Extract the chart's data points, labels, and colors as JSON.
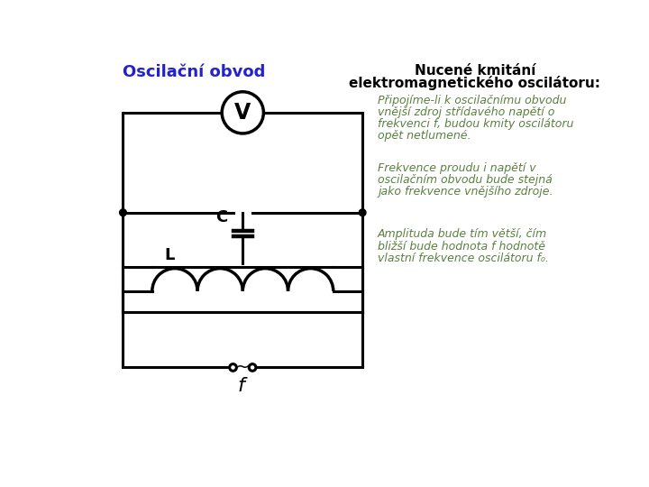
{
  "title_left": "Oscilační obvod",
  "title_right_line1": "Nucené kmitání",
  "title_right_line2": "elektromagnetického oscilátoru:",
  "para1_lines": [
    "Připojíme-li k oscilačnímu obvodu",
    "vnější zdroj střídavého napětí o",
    "frekvenci f, budou kmity oscilátoru",
    "opět netlumené."
  ],
  "para2_lines": [
    "Frekvence proudu i napětí v",
    "oscilačním obvodu bude stejná",
    "jako frekvence vnějšího zdroje."
  ],
  "para3_lines": [
    "Amplituda bude tím větší, čím",
    "bližší bude hodnota f hodnotě",
    "vlastní frekvence oscilátoru f₀."
  ],
  "label_C": "C",
  "label_L": "L",
  "label_f": "f",
  "bg_color": "#ffffff",
  "circuit_color": "#000000",
  "title_left_color": "#2222cc",
  "title_right_color": "#000000",
  "text_color": "#5a8040",
  "circuit_lw": 2.2
}
